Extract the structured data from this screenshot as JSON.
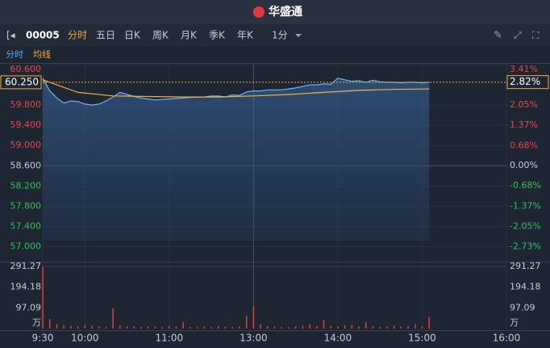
{
  "header": {
    "logo": "华盛通"
  },
  "toolbar": {
    "code": "00005",
    "tabs": [
      "分时",
      "五日",
      "日K",
      "周K",
      "月K",
      "季K",
      "年K",
      "1分"
    ]
  },
  "subbar": {
    "items": [
      "分时",
      "均线"
    ]
  },
  "chart_data": {
    "type": "line",
    "base_price": 58.6,
    "x": [
      0,
      5,
      10,
      15,
      20,
      25,
      30,
      35,
      40,
      45,
      50,
      55,
      60,
      65,
      70,
      75,
      80,
      85,
      90,
      95,
      100,
      105,
      110,
      115,
      120,
      125,
      130,
      135,
      140,
      145,
      150,
      155,
      160,
      165,
      170,
      175,
      180,
      185,
      190,
      195,
      200,
      205,
      210,
      215,
      220,
      225,
      230,
      235,
      240,
      245,
      250,
      255,
      260,
      265,
      270,
      275
    ],
    "series": [
      {
        "name": "分时",
        "color": "#6fb4f0",
        "values": [
          60.33,
          60.08,
          59.94,
          59.84,
          59.88,
          59.87,
          59.82,
          59.8,
          59.82,
          59.88,
          59.96,
          60.05,
          60.01,
          59.97,
          59.94,
          59.92,
          59.9,
          59.91,
          59.92,
          59.93,
          59.94,
          59.95,
          59.96,
          59.96,
          59.98,
          59.98,
          59.96,
          60.0,
          59.99,
          60.06,
          60.08,
          60.08,
          60.1,
          60.1,
          60.1,
          60.12,
          60.14,
          60.17,
          60.2,
          60.2,
          60.22,
          60.21,
          60.33,
          60.3,
          60.27,
          60.28,
          60.25,
          60.29,
          60.26,
          60.25,
          60.25,
          60.24,
          60.25,
          60.25,
          60.24,
          60.25
        ]
      },
      {
        "name": "均线",
        "color": "#f0b03c",
        "x": [
          0,
          25,
          50,
          75,
          100,
          125,
          150,
          175,
          200,
          225,
          250,
          275
        ],
        "values": [
          60.3,
          60.05,
          59.98,
          59.97,
          59.96,
          59.96,
          59.98,
          60.01,
          60.05,
          60.09,
          60.11,
          60.12
        ]
      }
    ],
    "volume": {
      "unit": "万",
      "color": "#e03b3b",
      "values": [
        290,
        45,
        20,
        15,
        12,
        10,
        18,
        14,
        10,
        8,
        95,
        15,
        10,
        12,
        8,
        10,
        9,
        7,
        12,
        10,
        30,
        8,
        6,
        10,
        8,
        12,
        9,
        7,
        10,
        60,
        105,
        20,
        12,
        10,
        8,
        6,
        10,
        14,
        20,
        12,
        40,
        12,
        10,
        15,
        18,
        10,
        30,
        12,
        8,
        10,
        14,
        9,
        12,
        20,
        10,
        55
      ],
      "ylim": [
        0,
        291.27
      ],
      "yticks": [
        97.09,
        194.18,
        291.27
      ]
    },
    "xlim": [
      0,
      330
    ],
    "xticks": [
      {
        "value": 0,
        "label": "9:30"
      },
      {
        "value": 30,
        "label": "10:00"
      },
      {
        "value": 90,
        "label": "11:00"
      },
      {
        "value": 150,
        "label": "13:00"
      },
      {
        "value": 210,
        "label": "14:00"
      },
      {
        "value": 270,
        "label": "15:00"
      },
      {
        "value": 330,
        "label": "16:00"
      }
    ],
    "ylim": [
      56.8,
      60.6
    ],
    "yticks": [
      {
        "value": 60.6,
        "label": "60.600"
      },
      {
        "value": 59.8,
        "label": "59.800"
      },
      {
        "value": 59.4,
        "label": "59.400"
      },
      {
        "value": 59.0,
        "label": "59.000"
      },
      {
        "value": 58.6,
        "label": "58.600"
      },
      {
        "value": 58.2,
        "label": "58.200"
      },
      {
        "value": 57.8,
        "label": "57.800"
      },
      {
        "value": 57.4,
        "label": "57.400"
      },
      {
        "value": 57.0,
        "label": "57.000"
      }
    ],
    "y2lim": [
      -3.07,
      3.41
    ],
    "y2ticks": [
      {
        "value": 3.41,
        "label": "3.41%"
      },
      {
        "value": 2.05,
        "label": "2.05%"
      },
      {
        "value": 1.37,
        "label": "1.37%"
      },
      {
        "value": 0.68,
        "label": "0.68%"
      },
      {
        "value": 0.0,
        "label": "0.00%"
      },
      {
        "value": -0.68,
        "label": "-0.68%"
      },
      {
        "value": -1.37,
        "label": "-1.37%"
      },
      {
        "value": -2.05,
        "label": "-2.05%"
      },
      {
        "value": -2.73,
        "label": "-2.73%"
      }
    ],
    "last_price": {
      "value": 60.25,
      "label": "60.250"
    },
    "last_pct": {
      "value": 2.82,
      "label": "2.82%"
    }
  }
}
